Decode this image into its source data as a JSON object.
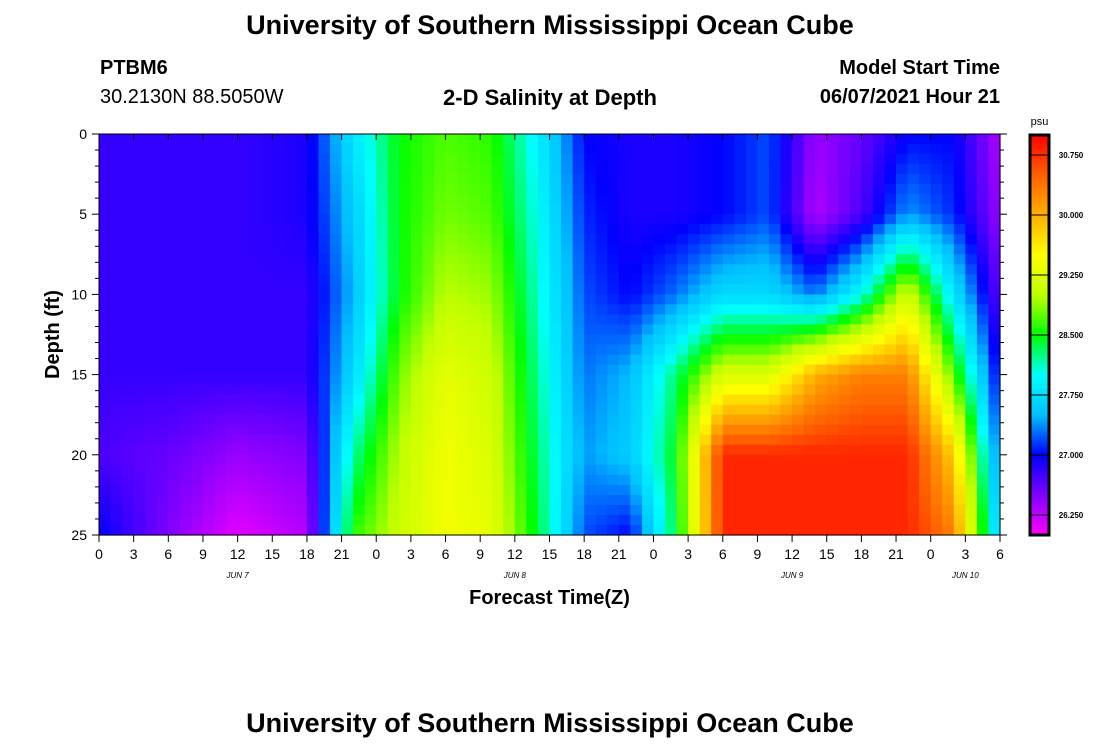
{
  "header": {
    "title_top": "University of Southern Mississippi Ocean Cube",
    "title_bottom": "University of Southern Mississippi Ocean Cube",
    "station_id": "PTBM6",
    "station_coords": "30.2130N  88.5050W",
    "plot_title": "2-D Salinity at Depth",
    "model_start_label": "Model Start Time",
    "model_start_value": "06/07/2021 Hour 21"
  },
  "chart_data": {
    "type": "heatmap",
    "title": "2-D Salinity at Depth",
    "xlabel": "Forecast Time(Z)",
    "ylabel": "Depth (ft)",
    "x_range_hours": [
      0,
      78
    ],
    "y_range": [
      0,
      25
    ],
    "y_inverted": true,
    "x_tick_labels": [
      "0",
      "3",
      "6",
      "9",
      "12",
      "15",
      "18",
      "21",
      "0",
      "3",
      "6",
      "9",
      "12",
      "15",
      "18",
      "21",
      "0",
      "3",
      "6",
      "9",
      "12",
      "15",
      "18",
      "21",
      "0",
      "3",
      "6"
    ],
    "x_tick_hours": [
      0,
      3,
      6,
      9,
      12,
      15,
      18,
      21,
      24,
      27,
      30,
      33,
      36,
      39,
      42,
      45,
      48,
      51,
      54,
      57,
      60,
      63,
      66,
      69,
      72,
      75,
      78
    ],
    "date_labels": [
      {
        "label": "JUN 7",
        "hour": 12
      },
      {
        "label": "JUN 8",
        "hour": 36
      },
      {
        "label": "JUN 9",
        "hour": 60
      },
      {
        "label": "JUN 10",
        "hour": 75
      }
    ],
    "y_tick_labels": [
      "0",
      "5",
      "10",
      "15",
      "20",
      "25"
    ],
    "y_tick_values": [
      0,
      5,
      10,
      15,
      20,
      25
    ],
    "colorbar": {
      "unit": "psu",
      "min": 26.0,
      "max": 31.0,
      "labels": [
        "30.750",
        "30.000",
        "29.250",
        "28.500",
        "27.750",
        "27.000",
        "26.250"
      ],
      "label_values": [
        30.75,
        30.0,
        29.25,
        28.5,
        27.75,
        27.0,
        26.25
      ],
      "color_stops": [
        "#ff00ff",
        "#8000ff",
        "#0000ff",
        "#00c0ff",
        "#00ffff",
        "#00ff00",
        "#c0ff00",
        "#ffff00",
        "#ffb000",
        "#ff6000",
        "#ff0000"
      ]
    },
    "time_hours": [
      0,
      6,
      12,
      18,
      22,
      26,
      30,
      34,
      38,
      42,
      46,
      50,
      54,
      58,
      62,
      66,
      70,
      74,
      78
    ],
    "depth_ft": [
      0,
      5,
      10,
      15,
      20,
      25
    ],
    "salinity_psu": [
      [
        26.8,
        26.8,
        26.8,
        26.9,
        27.8,
        28.5,
        28.7,
        28.6,
        27.9,
        27.0,
        26.9,
        26.9,
        27.0,
        27.2,
        26.4,
        26.6,
        27.0,
        27.0,
        26.3
      ],
      [
        26.8,
        26.8,
        26.8,
        26.9,
        27.6,
        28.5,
        28.8,
        28.7,
        28.0,
        27.1,
        26.9,
        26.9,
        27.0,
        27.2,
        26.3,
        26.7,
        27.4,
        27.1,
        26.4
      ],
      [
        26.8,
        26.8,
        26.8,
        26.8,
        27.5,
        28.5,
        29.0,
        28.9,
        28.1,
        27.2,
        27.0,
        27.3,
        27.7,
        27.7,
        27.3,
        28.0,
        29.2,
        27.8,
        26.6
      ],
      [
        26.8,
        26.8,
        26.8,
        26.8,
        27.7,
        28.8,
        29.3,
        29.1,
        28.2,
        27.3,
        27.5,
        28.3,
        29.2,
        29.2,
        30.0,
        30.3,
        30.3,
        28.7,
        26.9
      ],
      [
        26.7,
        26.6,
        26.4,
        26.5,
        28.2,
        29.0,
        29.4,
        29.2,
        28.3,
        27.4,
        27.6,
        28.5,
        30.8,
        30.8,
        30.8,
        30.8,
        30.8,
        29.8,
        27.2
      ],
      [
        27.0,
        26.5,
        26.1,
        26.3,
        28.6,
        29.1,
        29.4,
        29.3,
        28.4,
        27.2,
        27.0,
        28.4,
        30.8,
        30.8,
        30.8,
        30.8,
        30.8,
        30.3,
        27.5
      ]
    ]
  }
}
